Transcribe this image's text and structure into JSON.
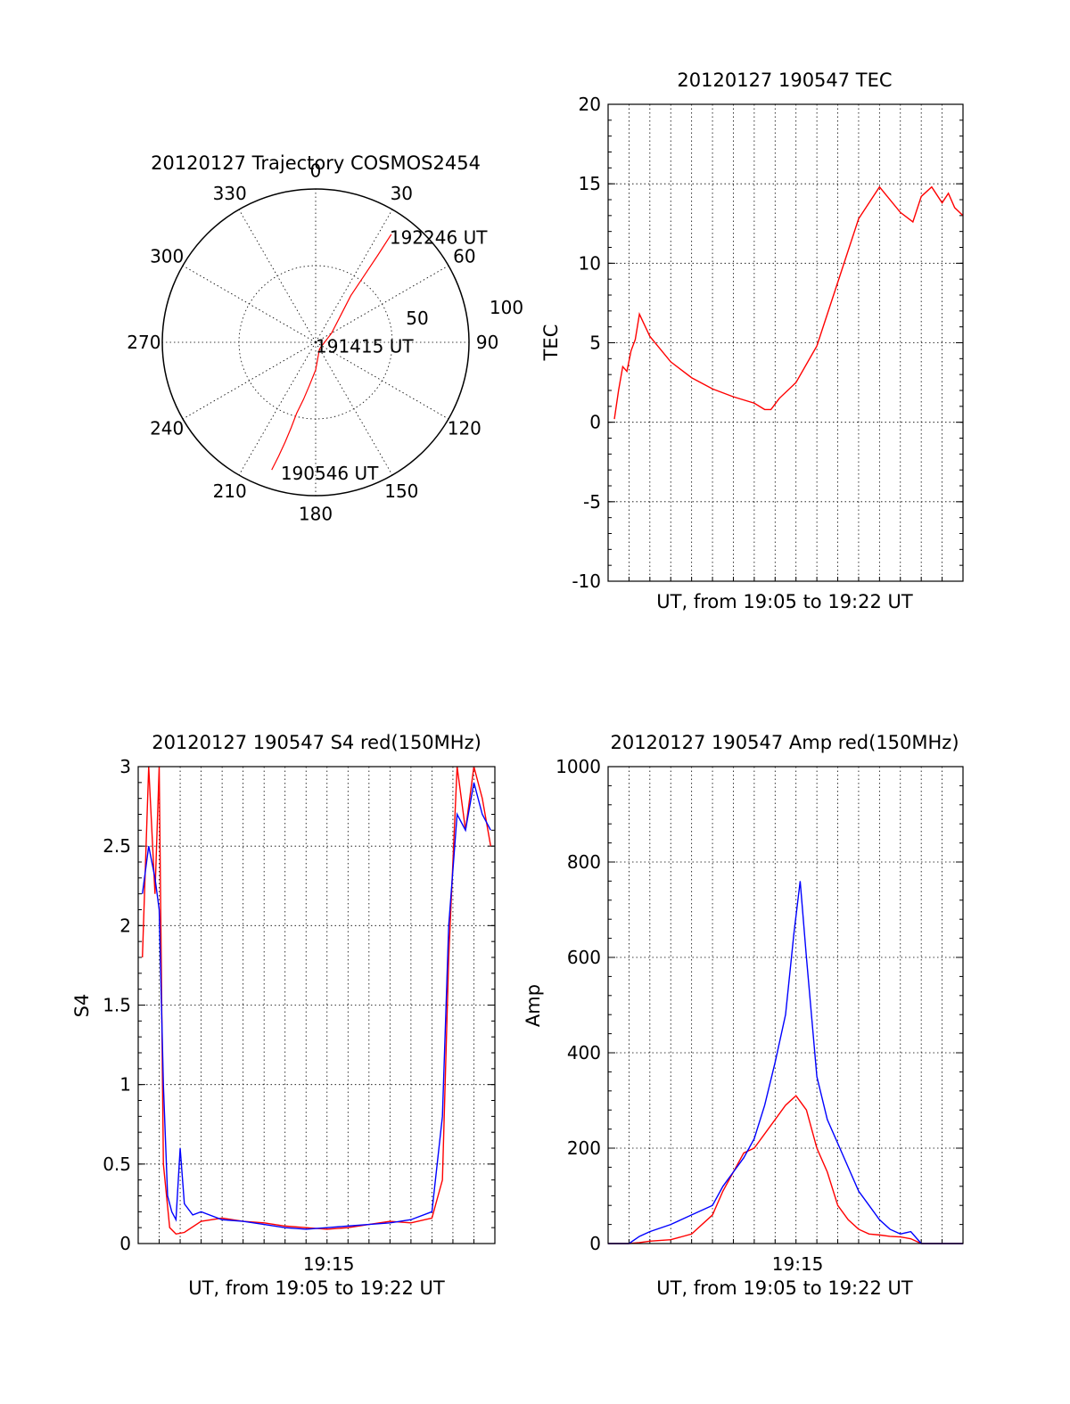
{
  "chart_data": [
    {
      "id": "polar",
      "type": "scatter",
      "title": "20120127 Trajectory COSMOS2454",
      "angle_labels": [
        "0",
        "30",
        "60",
        "90",
        "120",
        "150",
        "180",
        "210",
        "240",
        "270",
        "300",
        "330"
      ],
      "radius_labels": [
        "50",
        "100"
      ],
      "rlim": [
        0,
        100
      ],
      "annotations": [
        {
          "text": "192246 UT",
          "az": 35,
          "r": 84
        },
        {
          "text": "191415 UT",
          "az": 180,
          "r": 2
        },
        {
          "text": "190546 UT",
          "az": 195,
          "r": 88
        }
      ],
      "series": [
        {
          "color": "#ff0000",
          "az": [
            199,
            198,
            197,
            196,
            195,
            192,
            188,
            180,
            150,
            60,
            37,
            36,
            35.5,
            35
          ],
          "r": [
            88,
            78,
            68,
            58,
            48,
            38,
            28,
            18,
            5,
            12,
            38,
            55,
            70,
            86
          ]
        }
      ]
    },
    {
      "id": "tec",
      "type": "line",
      "title": "20120127 190547 TEC",
      "xlabel": "UT, from 19:05 to 19:22 UT",
      "ylabel": "TEC",
      "ylim": [
        -10,
        20
      ],
      "yticks": [
        "-10",
        "-5",
        "0",
        "5",
        "10",
        "15",
        "20"
      ],
      "x_range": [
        0,
        17
      ],
      "grid": true,
      "series": [
        {
          "color": "#ff0000",
          "x": [
            0.3,
            0.5,
            0.7,
            0.9,
            1.1,
            1.3,
            1.5,
            2,
            3,
            4,
            5,
            6,
            7,
            7.5,
            7.8,
            8.2,
            9,
            10,
            11,
            12,
            13,
            14,
            14.6,
            15,
            15.5,
            16,
            16.3,
            16.6,
            17
          ],
          "y": [
            0.2,
            2.0,
            3.5,
            3.2,
            4.5,
            5.2,
            6.8,
            5.4,
            3.8,
            2.8,
            2.1,
            1.6,
            1.2,
            0.8,
            0.8,
            1.5,
            2.5,
            4.8,
            8.8,
            12.8,
            14.8,
            13.2,
            12.6,
            14.2,
            14.8,
            13.8,
            14.4,
            13.5,
            13.0
          ]
        }
      ]
    },
    {
      "id": "s4",
      "type": "line",
      "title": "20120127 190547 S4 red(150MHz)",
      "xlabel": "UT, from 19:05 to 19:22 UT",
      "ylabel": "S4",
      "ylim": [
        0,
        3
      ],
      "yticks": [
        "0",
        "0.5",
        "1",
        "1.5",
        "2",
        "2.5",
        "3"
      ],
      "x_range": [
        0,
        17
      ],
      "xtick_label": "19:15",
      "xtick_value": 9.08,
      "grid": true,
      "series": [
        {
          "color": "#ff0000",
          "x": [
            0.2,
            0.5,
            0.8,
            1.0,
            1.2,
            1.5,
            1.8,
            2.2,
            3,
            4,
            5,
            6,
            7,
            8,
            9,
            10,
            11,
            12,
            13,
            14,
            14.5,
            14.8,
            15.2,
            15.6,
            16,
            16.4,
            16.8
          ],
          "y": [
            1.8,
            3.0,
            2.2,
            3.0,
            0.5,
            0.1,
            0.06,
            0.07,
            0.14,
            0.16,
            0.14,
            0.13,
            0.11,
            0.1,
            0.09,
            0.1,
            0.12,
            0.14,
            0.13,
            0.16,
            0.4,
            1.8,
            3.0,
            2.6,
            3.0,
            2.8,
            2.5
          ]
        },
        {
          "color": "#0000ff",
          "x": [
            0.2,
            0.5,
            0.8,
            1.0,
            1.2,
            1.4,
            1.6,
            1.8,
            2.0,
            2.2,
            2.6,
            3,
            4,
            5,
            6,
            7,
            8,
            9,
            10,
            11,
            12,
            13,
            14,
            14.5,
            14.8,
            15.2,
            15.6,
            16,
            16.4,
            16.8
          ],
          "y": [
            2.2,
            2.5,
            2.3,
            2.1,
            1.0,
            0.3,
            0.2,
            0.15,
            0.6,
            0.25,
            0.18,
            0.2,
            0.15,
            0.14,
            0.12,
            0.1,
            0.09,
            0.1,
            0.11,
            0.12,
            0.13,
            0.15,
            0.2,
            0.8,
            2.0,
            2.7,
            2.6,
            2.9,
            2.7,
            2.6
          ]
        }
      ]
    },
    {
      "id": "amp",
      "type": "line",
      "title": "20120127 190547 Amp red(150MHz)",
      "xlabel": "UT, from 19:05 to 19:22 UT",
      "ylabel": "Amp",
      "ylim": [
        0,
        1000
      ],
      "yticks": [
        "0",
        "200",
        "400",
        "600",
        "800",
        "1000"
      ],
      "x_range": [
        0,
        17
      ],
      "xtick_label": "19:15",
      "xtick_value": 9.08,
      "grid": true,
      "series": [
        {
          "color": "#ff0000",
          "x": [
            0,
            1,
            1.5,
            2,
            3,
            4,
            5,
            5.5,
            6,
            6.5,
            7,
            7.5,
            8,
            8.5,
            9,
            9.5,
            10,
            10.5,
            11,
            11.5,
            12,
            12.5,
            13,
            13.5,
            14,
            14.5,
            15,
            15.5,
            17
          ],
          "y": [
            0,
            0,
            2,
            5,
            8,
            20,
            60,
            110,
            150,
            190,
            200,
            230,
            260,
            290,
            310,
            280,
            200,
            150,
            80,
            50,
            30,
            20,
            18,
            15,
            14,
            10,
            0,
            0,
            0
          ]
        },
        {
          "color": "#0000ff",
          "x": [
            0,
            1,
            1.5,
            2,
            3,
            4,
            5,
            5.5,
            6,
            6.5,
            7,
            7.5,
            8,
            8.5,
            8.9,
            9.2,
            9.5,
            10,
            10.5,
            11,
            11.5,
            12,
            12.5,
            13,
            13.5,
            14,
            14.5,
            15,
            15.5,
            17
          ],
          "y": [
            0,
            0,
            15,
            25,
            40,
            60,
            80,
            120,
            150,
            180,
            220,
            290,
            380,
            480,
            650,
            760,
            600,
            350,
            260,
            210,
            160,
            110,
            80,
            50,
            30,
            20,
            25,
            0,
            0,
            0
          ]
        }
      ]
    }
  ]
}
